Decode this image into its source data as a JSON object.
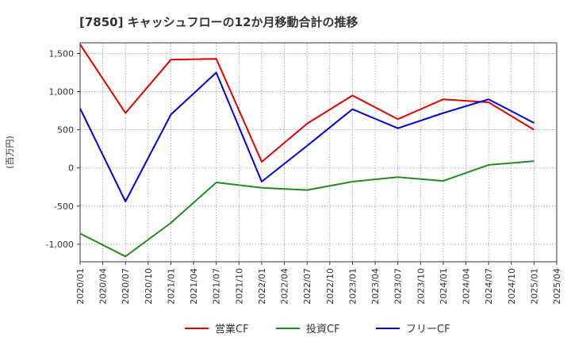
{
  "chart_data": {
    "type": "line",
    "title": "[7850]  キャッシュフローの12か月移動合計の推移",
    "xlabel": "",
    "ylabel": "(百万円)",
    "ylim": [
      -1230,
      1640
    ],
    "yticks": [
      1500,
      1000,
      500,
      0,
      -500,
      -1000
    ],
    "ytick_labels": [
      "1,500",
      "1,000",
      "500",
      "0",
      "-500",
      "-1,000"
    ],
    "categories": [
      "2020/01",
      "2020/04",
      "2020/07",
      "2020/10",
      "2021/01",
      "2021/04",
      "2021/07",
      "2021/10",
      "2022/01",
      "2022/04",
      "2022/07",
      "2022/10",
      "2023/01",
      "2023/04",
      "2023/07",
      "2023/10",
      "2024/01",
      "2024/04",
      "2024/07",
      "2024/10",
      "2025/01",
      "2025/04"
    ],
    "grid": true,
    "legend_position": "bottom",
    "series": [
      {
        "name": "営業CF",
        "color": "#e00000",
        "x": [
          "2020/01",
          "2020/07",
          "2021/01",
          "2021/07",
          "2022/01",
          "2022/07",
          "2023/01",
          "2023/07",
          "2024/01",
          "2024/07",
          "2025/01"
        ],
        "values": [
          1620,
          720,
          1420,
          1430,
          80,
          580,
          950,
          640,
          900,
          860,
          500
        ]
      },
      {
        "name": "投資CF",
        "color": "#228b22",
        "x": [
          "2020/01",
          "2020/07",
          "2021/01",
          "2021/07",
          "2022/01",
          "2022/07",
          "2023/01",
          "2023/07",
          "2024/01",
          "2024/07",
          "2025/01"
        ],
        "values": [
          -860,
          -1160,
          -720,
          -190,
          -260,
          -290,
          -180,
          -120,
          -170,
          40,
          90
        ]
      },
      {
        "name": "フリーCF",
        "color": "#0000dd",
        "x": [
          "2020/01",
          "2020/07",
          "2021/01",
          "2021/07",
          "2022/01",
          "2022/07",
          "2023/01",
          "2023/07",
          "2024/01",
          "2024/07",
          "2025/01"
        ],
        "values": [
          780,
          -440,
          700,
          1250,
          -180,
          290,
          770,
          520,
          720,
          900,
          590
        ]
      }
    ]
  }
}
